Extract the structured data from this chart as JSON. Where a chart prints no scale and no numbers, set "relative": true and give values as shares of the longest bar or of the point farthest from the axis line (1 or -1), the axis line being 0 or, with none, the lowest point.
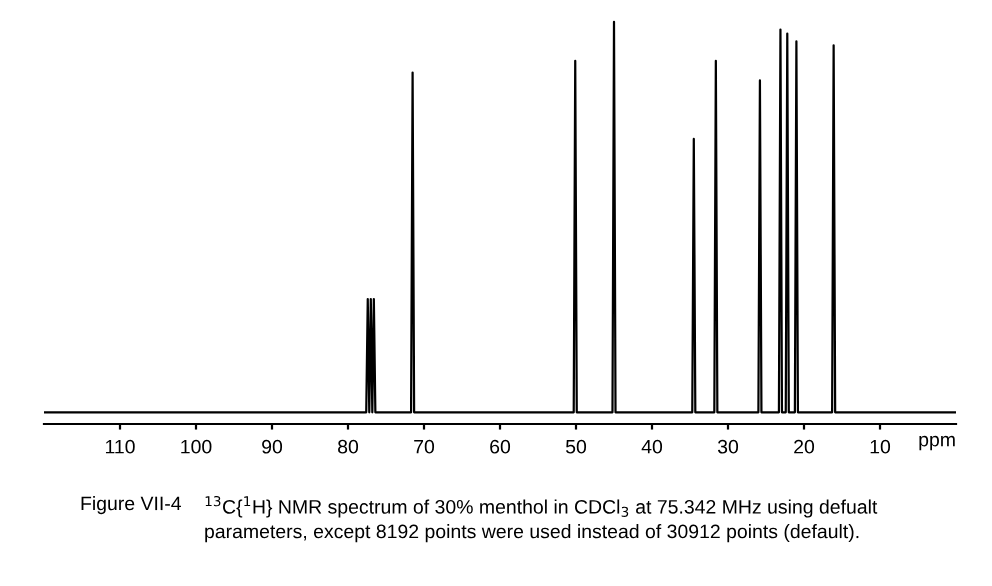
{
  "chart_data": {
    "type": "line",
    "relative": true,
    "xlabel": "ppm",
    "x": [
      120,
      100,
      80,
      77.6,
      77.4,
      77.2,
      77.0,
      76.8,
      76.6,
      76.4,
      71.7,
      71.5,
      71.3,
      60,
      50.3,
      50.1,
      49.9,
      45.2,
      45.0,
      44.8,
      40,
      34.7,
      34.5,
      34.3,
      31.8,
      31.6,
      31.4,
      28,
      26.0,
      25.8,
      25.6,
      23.3,
      23.1,
      22.9,
      22.4,
      22.2,
      22.0,
      21.2,
      21.0,
      20.8,
      16.3,
      16.1,
      15.9,
      10,
      0
    ],
    "values": [
      0,
      0,
      0,
      0,
      0.29,
      0,
      0.29,
      0,
      0.29,
      0,
      0,
      0.87,
      0,
      0,
      0,
      0.9,
      0,
      0,
      1,
      0,
      0,
      0,
      0.7,
      0,
      0,
      0.9,
      0,
      0,
      0,
      0.85,
      0,
      0,
      0.98,
      0,
      0,
      0.97,
      0,
      0,
      0.95,
      0,
      0,
      0.94,
      0,
      0,
      0
    ],
    "color": "#000000",
    "xlim": [
      120,
      0
    ],
    "xticks": [
      110,
      100,
      90,
      80,
      70,
      60,
      50,
      40,
      30,
      20,
      10
    ],
    "tick_labels": "x",
    "grid": false,
    "legend": false,
    "annotations": [
      "Figure VII-4",
      "$^{13}$C{$^{1}$H} NMR spectrum of 30% menthol in CDCl$_{3}$ at 75.342 MHz using defualt",
      "parameters, except 8192 points were used instead of 30912 points (default)."
    ]
  }
}
